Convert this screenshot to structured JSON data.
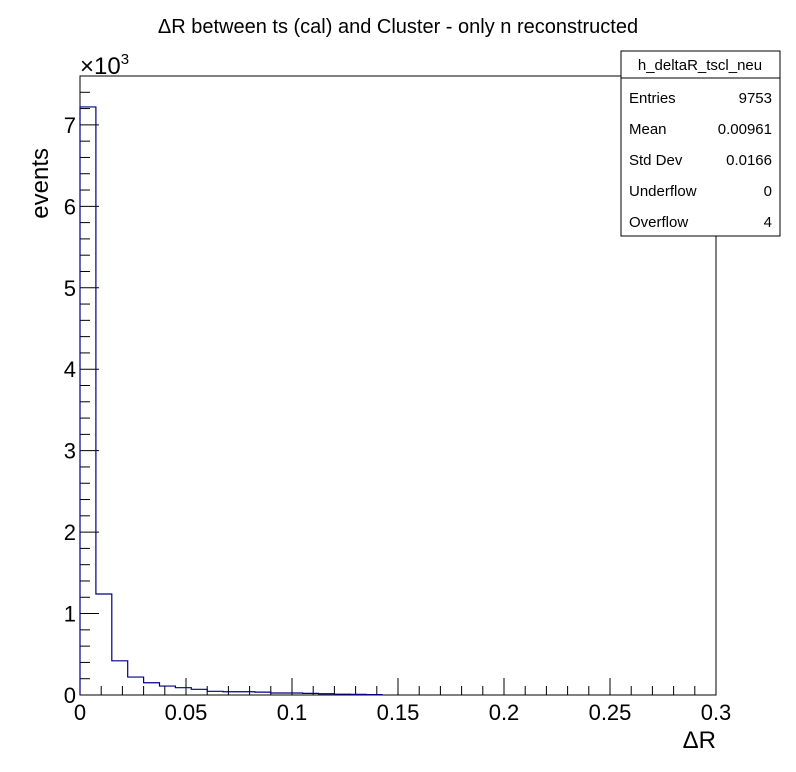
{
  "chart_data": {
    "type": "bar",
    "title": "ΔR between ts (cal) and Cluster - only n reconstructed",
    "xlabel": "ΔR",
    "ylabel": "events",
    "y_multiplier": "×10",
    "y_multiplier_exp": "3",
    "xlim": [
      0,
      0.3
    ],
    "ylim": [
      0,
      7600
    ],
    "x_ticks": [
      {
        "value": 0,
        "label": "0"
      },
      {
        "value": 0.05,
        "label": "0.05"
      },
      {
        "value": 0.1,
        "label": "0.1"
      },
      {
        "value": 0.15,
        "label": "0.15"
      },
      {
        "value": 0.2,
        "label": "0.2"
      },
      {
        "value": 0.25,
        "label": "0.25"
      },
      {
        "value": 0.3,
        "label": "0.3"
      }
    ],
    "y_ticks": [
      {
        "value": 0,
        "label": "0"
      },
      {
        "value": 1000,
        "label": "1"
      },
      {
        "value": 2000,
        "label": "2"
      },
      {
        "value": 3000,
        "label": "3"
      },
      {
        "value": 4000,
        "label": "4"
      },
      {
        "value": 5000,
        "label": "5"
      },
      {
        "value": 6000,
        "label": "6"
      },
      {
        "value": 7000,
        "label": "7"
      }
    ],
    "bin_width": 0.0075,
    "bin_edges_start": 0,
    "values": [
      7220,
      1240,
      420,
      220,
      150,
      110,
      90,
      70,
      45,
      40,
      40,
      35,
      25,
      25,
      20,
      15,
      10,
      8,
      5
    ],
    "line_color": "#000080",
    "stats": {
      "name": "h_deltaR_tscl_neu",
      "rows": [
        {
          "label": "Entries",
          "value": "9753"
        },
        {
          "label": "Mean",
          "value": "0.00961"
        },
        {
          "label": "Std Dev",
          "value": "0.0166"
        },
        {
          "label": "Underflow",
          "value": "0"
        },
        {
          "label": "Overflow",
          "value": "4"
        }
      ]
    }
  }
}
